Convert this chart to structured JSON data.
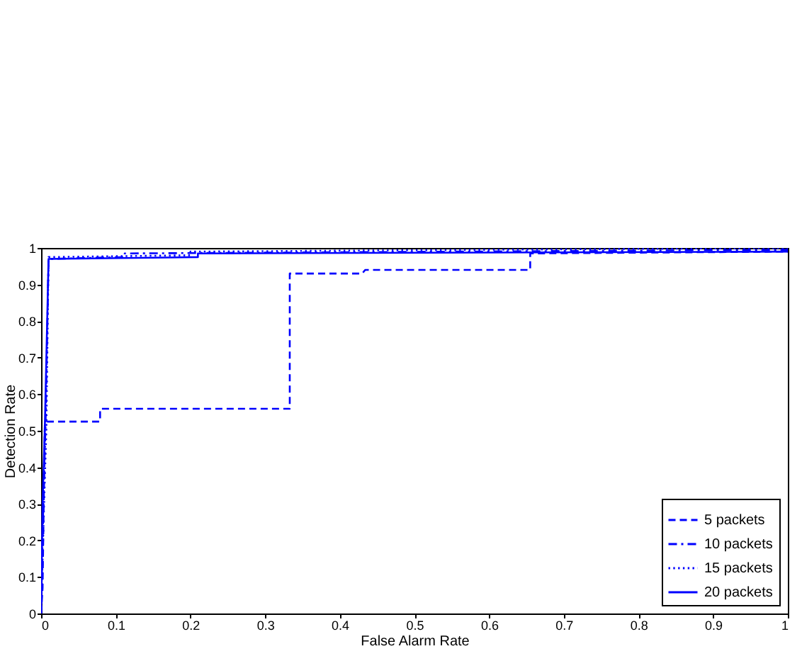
{
  "chart_data": {
    "type": "line",
    "xlabel": "False Alarm Rate",
    "ylabel": "Detection Rate",
    "xlim": [
      0,
      1
    ],
    "ylim": [
      0,
      1
    ],
    "xticks": [
      0,
      0.1,
      0.2,
      0.3,
      0.4,
      0.5,
      0.6,
      0.7,
      0.8,
      0.9,
      1
    ],
    "yticks": [
      0,
      0.1,
      0.2,
      0.3,
      0.4,
      0.5,
      0.6,
      0.7,
      0.8,
      0.9,
      1
    ],
    "legend": "bottom right",
    "series": [
      {
        "name": "5 packets",
        "color": "#0000ff",
        "line_style": "dashed",
        "x": [
          0,
          0.002,
          0.005,
          0.008,
          0.079,
          0.079,
          0.333,
          0.333,
          0.43,
          0.434,
          0.655,
          0.655,
          1
        ],
        "values": [
          0,
          0.07,
          0.52,
          0.525,
          0.525,
          0.56,
          0.56,
          0.93,
          0.93,
          0.94,
          0.94,
          0.985,
          0.99
        ]
      },
      {
        "name": "10 packets",
        "color": "#0000ff",
        "line_style": "dashdot",
        "x": [
          0,
          0.003,
          0.006,
          0.01,
          0.112,
          0.112,
          1
        ],
        "values": [
          0,
          0.3,
          0.52,
          0.97,
          0.975,
          0.985,
          0.995
        ]
      },
      {
        "name": "15 packets",
        "color": "#0000ff",
        "line_style": "dotted",
        "x": [
          0,
          0.004,
          0.007,
          0.01,
          0.2,
          0.2,
          1
        ],
        "values": [
          0,
          0.3,
          0.5,
          0.975,
          0.98,
          0.99,
          1
        ]
      },
      {
        "name": "20 packets",
        "color": "#0000ff",
        "line_style": "solid",
        "x": [
          0,
          0.002,
          0.005,
          0.01,
          0.21,
          0.21,
          1
        ],
        "values": [
          0,
          0.3,
          0.51,
          0.97,
          0.975,
          0.985,
          0.99
        ]
      }
    ]
  }
}
